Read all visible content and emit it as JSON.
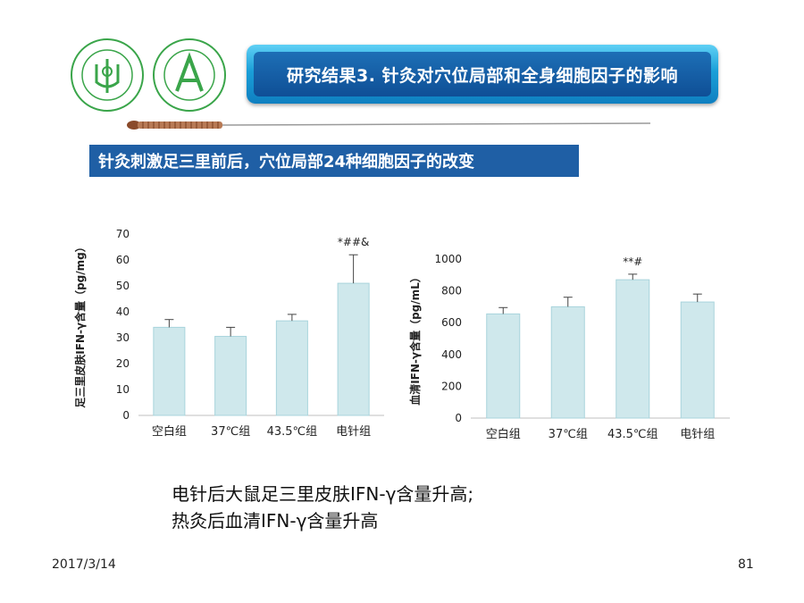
{
  "header": {
    "title": "研究结果3. 针灸对穴位局部和全身细胞因子的影响",
    "subtitle": "针灸刺激足三里前后，穴位局部24种细胞因子的改变"
  },
  "caption": {
    "line1": "电针后大鼠足三里皮肤IFN-γ含量升高;",
    "line2": "热灸后血清IFN-γ含量升高"
  },
  "footer": {
    "date": "2017/3/14",
    "page": "81"
  },
  "colors": {
    "bar_fill": "#cfe8ec",
    "bar_stroke": "#a8d4dc",
    "title_blue": "#0f4f96",
    "subtitle_blue": "#1f5fa5",
    "logo_green": "#3aa54a"
  },
  "chart_data": [
    {
      "type": "bar",
      "categories": [
        "空白组",
        "37℃组",
        "43.5℃组",
        "电针组"
      ],
      "values": [
        34,
        30.5,
        36.5,
        51
      ],
      "errors": [
        3,
        3.5,
        2.5,
        11
      ],
      "annotations": [
        "",
        "",
        "",
        "*##&"
      ],
      "ylabel": "足三里皮肤IFN-γ含量（pg/mg）",
      "ylim": [
        0,
        70
      ],
      "yticks": [
        0,
        10,
        20,
        30,
        40,
        50,
        60,
        70
      ]
    },
    {
      "type": "bar",
      "categories": [
        "空白组",
        "37℃组",
        "43.5℃组",
        "电针组"
      ],
      "values": [
        655,
        700,
        870,
        730
      ],
      "errors": [
        40,
        60,
        35,
        50
      ],
      "annotations": [
        "",
        "",
        "**#",
        ""
      ],
      "ylabel": "血清IFN-γ含量（pg/mL）",
      "ylim": [
        0,
        1000
      ],
      "yticks": [
        0,
        200,
        400,
        600,
        800,
        1000
      ]
    }
  ]
}
